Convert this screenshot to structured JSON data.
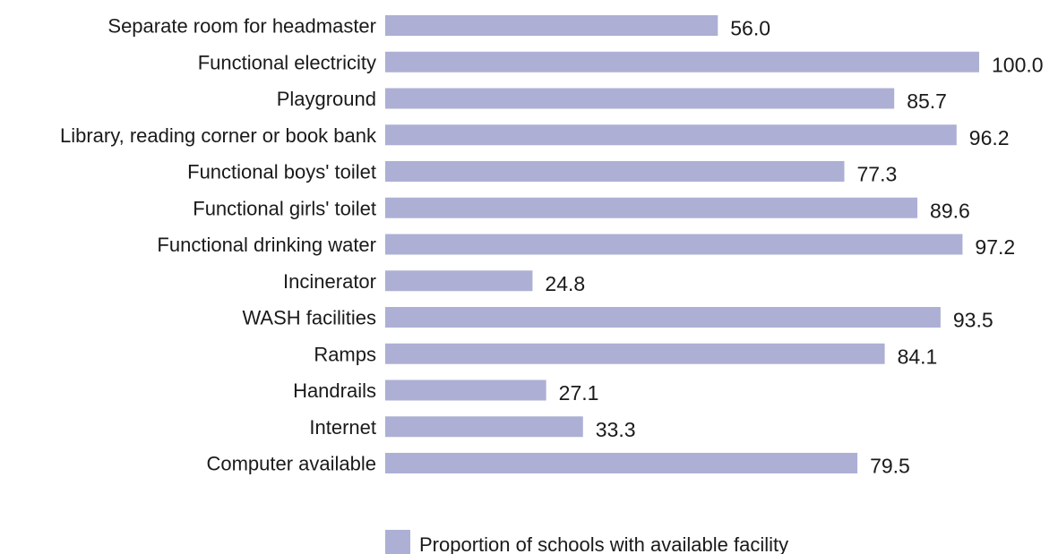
{
  "chart_data": {
    "type": "bar",
    "orientation": "horizontal",
    "categories": [
      "Separate room for headmaster",
      "Functional electricity",
      "Playground",
      "Library, reading corner or book bank",
      "Functional boys' toilet",
      "Functional girls' toilet",
      "Functional drinking water",
      "Incinerator",
      "WASH facilities",
      "Ramps",
      "Handrails",
      "Internet",
      "Computer available"
    ],
    "series": [
      {
        "name": "Proportion of schools with available facility",
        "values": [
          56.0,
          100.0,
          85.7,
          96.2,
          77.3,
          89.6,
          97.2,
          24.8,
          93.5,
          84.1,
          27.1,
          33.3,
          79.5
        ],
        "value_labels": [
          "56.0",
          "100.0",
          "85.7",
          "96.2",
          "77.3",
          "89.6",
          "97.2",
          "24.8",
          "93.5",
          "84.1",
          "27.1",
          "33.3",
          "79.5"
        ],
        "color": "#adb0d4"
      }
    ],
    "xlim": [
      0,
      100
    ],
    "grid": false,
    "legend_position": "bottom"
  }
}
